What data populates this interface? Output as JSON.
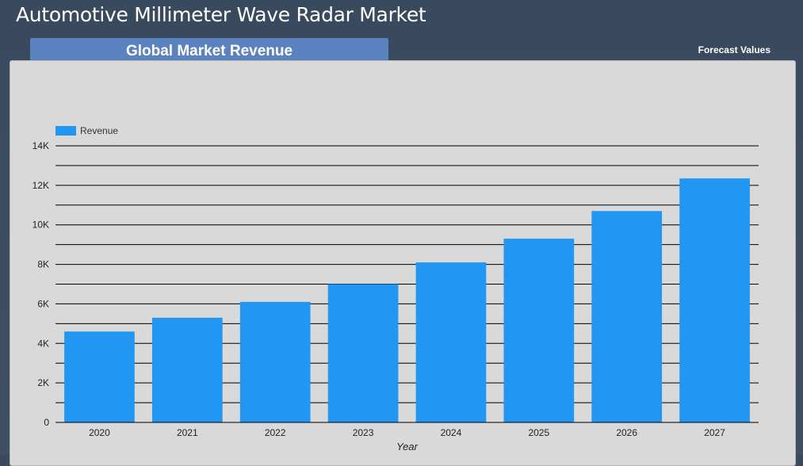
{
  "header": {
    "title": "Automotive Millimeter Wave Radar Market",
    "tab_label": "Global Market Revenue",
    "forecast_label": "Forecast Values"
  },
  "colors": {
    "bar": "#2196f3",
    "panel": "#d9d9d9",
    "tab": "#5a82bf"
  },
  "chart_data": {
    "type": "bar",
    "categories": [
      "2020",
      "2021",
      "2022",
      "2023",
      "2024",
      "2025",
      "2026",
      "2027"
    ],
    "series": [
      {
        "name": "Revenue",
        "values": [
          4600,
          5300,
          6100,
          7000,
          8100,
          9300,
          10700,
          12350
        ]
      }
    ],
    "xlabel": "Year",
    "ylabel": "",
    "ylim": [
      0,
      14000
    ],
    "yticks": [
      0,
      2000,
      4000,
      6000,
      8000,
      10000,
      12000,
      14000
    ],
    "ytick_labels": [
      "0",
      "2K",
      "4K",
      "6K",
      "8K",
      "10K",
      "12K",
      "14K"
    ],
    "minor_gridlines": true,
    "grid": true,
    "legend": "top-left"
  }
}
